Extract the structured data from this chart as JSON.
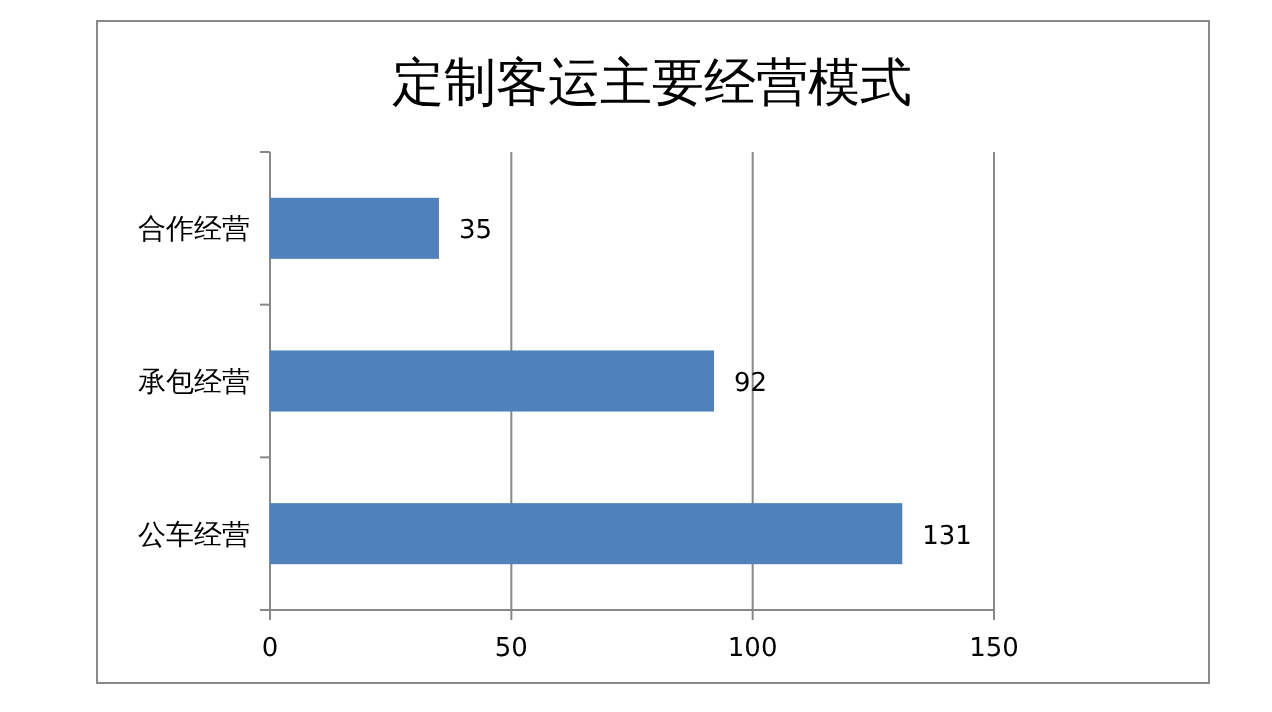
{
  "chart_data": {
    "type": "bar",
    "orientation": "horizontal",
    "title": "定制客运主要经营模式",
    "categories": [
      "合作经营",
      "承包经营",
      "公车经营"
    ],
    "values": [
      35,
      92,
      131
    ],
    "color": "#4f81bd",
    "xlim": [
      0,
      150
    ],
    "xticks": [
      0,
      50,
      100,
      150
    ],
    "grid": "x",
    "data_labels": true
  }
}
